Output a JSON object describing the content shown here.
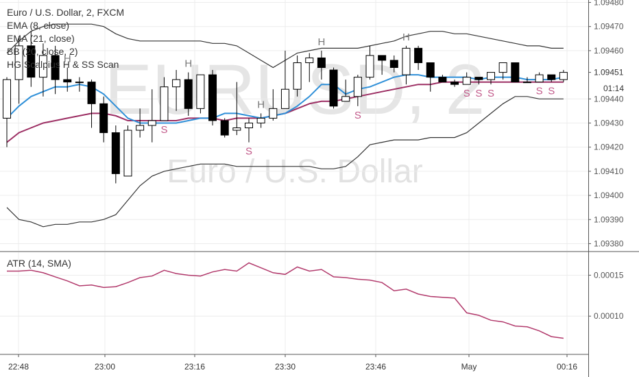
{
  "legend": {
    "title": "Euro / U.S. Dollar, 2, FXCM",
    "lines": [
      "EMA (8, close)",
      "EMA (21, close)",
      "BB (20, close, 2)",
      "HG Scalpius H & SS Scan"
    ]
  },
  "watermark": {
    "symbol": "EURUSD, 2",
    "name": "Euro / U.S. Dollar"
  },
  "atr_legend": "ATR (14, SMA)",
  "last_price_label": "1.09451",
  "countdown_label": "01:14",
  "colors": {
    "up": "#ffffff",
    "down": "#000000",
    "ema8": "#2e8fd8",
    "ema21": "#9c2e63",
    "bb": "#333333",
    "atr": "#b23a6c",
    "marker": "#c25a8a",
    "marker_h": "#777777"
  },
  "chart_data": [
    {
      "type": "candlestick",
      "title": "Euro / U.S. Dollar, 2, FXCM",
      "x_tick_labels": [
        "22:48",
        "23:00",
        "23:16",
        "23:30",
        "23:46",
        "May",
        "00:16"
      ],
      "y_ticks": [
        1.0948,
        1.0947,
        1.0946,
        1.09451,
        1.0944,
        1.0943,
        1.0942,
        1.0941,
        1.094,
        1.0939,
        1.0938
      ],
      "y_tick_labels": [
        "1.09480",
        "1.09470",
        "1.09460",
        "1.09451",
        "1.09440",
        "1.09430",
        "1.09420",
        "1.09410",
        "1.09400",
        "1.09390",
        "1.09380"
      ],
      "ylim": [
        1.09377,
        1.09481
      ],
      "grid": true,
      "candles": [
        [
          1.09432,
          1.09448,
          1.09449,
          1.0942
        ],
        [
          1.09448,
          1.09462,
          1.09466,
          1.09438
        ],
        [
          1.09462,
          1.09449,
          1.09468,
          1.09445
        ],
        [
          1.09449,
          1.09458,
          1.09463,
          1.09441
        ],
        [
          1.09458,
          1.09448,
          1.09462,
          1.09442
        ],
        [
          1.09448,
          1.09447,
          1.09453,
          1.09443
        ],
        [
          1.09447,
          1.09447,
          1.09449,
          1.09443
        ],
        [
          1.09447,
          1.09438,
          1.09448,
          1.09428
        ],
        [
          1.09438,
          1.09426,
          1.09441,
          1.09422
        ],
        [
          1.09426,
          1.09409,
          1.09429,
          1.09405
        ],
        [
          1.09408,
          1.09427,
          1.09429,
          1.09408
        ],
        [
          1.09427,
          1.09429,
          1.09436,
          1.09424
        ],
        [
          1.09429,
          1.09431,
          1.09444,
          1.09422
        ],
        [
          1.09431,
          1.09445,
          1.09449,
          1.09431
        ],
        [
          1.09445,
          1.09448,
          1.09452,
          1.09435
        ],
        [
          1.09448,
          1.09436,
          1.09451,
          1.09433
        ],
        [
          1.09436,
          1.0945,
          1.0945,
          1.09434
        ],
        [
          1.0945,
          1.09431,
          1.09452,
          1.09429
        ],
        [
          1.09431,
          1.09425,
          1.09432,
          1.09424
        ],
        [
          1.09427,
          1.09428,
          1.09447,
          1.09425
        ],
        [
          1.09428,
          1.0943,
          1.09432,
          1.09422
        ],
        [
          1.0943,
          1.09432,
          1.09434,
          1.09428
        ],
        [
          1.09432,
          1.09436,
          1.09444,
          1.09431
        ],
        [
          1.09436,
          1.09444,
          1.0946,
          1.09436
        ],
        [
          1.09444,
          1.09455,
          1.09458,
          1.09441
        ],
        [
          1.09455,
          1.09457,
          1.09459,
          1.09447
        ],
        [
          1.09457,
          1.09453,
          1.0946,
          1.09448
        ],
        [
          1.09452,
          1.09437,
          1.09453,
          1.09436
        ],
        [
          1.09439,
          1.09441,
          1.09448,
          1.09439
        ],
        [
          1.09441,
          1.09449,
          1.0945,
          1.09437
        ],
        [
          1.09449,
          1.09458,
          1.09462,
          1.09448
        ],
        [
          1.09458,
          1.09456,
          1.09458,
          1.0945
        ],
        [
          1.09456,
          1.09453,
          1.09458,
          1.09451
        ],
        [
          1.0945,
          1.09461,
          1.09462,
          1.09446
        ],
        [
          1.09461,
          1.09455,
          1.09462,
          1.09452
        ],
        [
          1.09455,
          1.09449,
          1.0945,
          1.09443
        ],
        [
          1.09449,
          1.09447,
          1.0945,
          1.09447
        ],
        [
          1.09447,
          1.09446,
          1.09448,
          1.09445
        ],
        [
          1.09446,
          1.09449,
          1.09451,
          1.09446
        ],
        [
          1.09449,
          1.09448,
          1.09449,
          1.09446
        ],
        [
          1.09448,
          1.09451,
          1.09451,
          1.09446
        ],
        [
          1.09451,
          1.09455,
          1.09455,
          1.09448
        ],
        [
          1.09455,
          1.09447,
          1.09455,
          1.09447
        ],
        [
          1.09447,
          1.09447,
          1.09449,
          1.09447
        ],
        [
          1.09447,
          1.0945,
          1.09451,
          1.09447
        ],
        [
          1.0945,
          1.09448,
          1.09449,
          1.09447
        ],
        [
          1.09448,
          1.09451,
          1.09452,
          1.09447
        ]
      ],
      "ema8": [
        1.09432,
        1.09437,
        1.09441,
        1.09443,
        1.09445,
        1.09445,
        1.09446,
        1.09445,
        1.09442,
        1.09437,
        1.09432,
        1.0943,
        1.0943,
        1.0943,
        1.0943,
        1.09431,
        1.09432,
        1.09432,
        1.09434,
        1.09434,
        1.09433,
        1.09432,
        1.09433,
        1.09434,
        1.09437,
        1.09441,
        1.09446,
        1.09446,
        1.09442,
        1.09444,
        1.09445,
        1.09447,
        1.09449,
        1.0945,
        1.0945,
        1.09449,
        1.09449,
        1.09449,
        1.09449,
        1.09448,
        1.09449,
        1.09449,
        1.09449,
        1.09448,
        1.09448,
        1.09448,
        1.09449
      ],
      "ema21": [
        1.09422,
        1.09426,
        1.09428,
        1.0943,
        1.09431,
        1.09432,
        1.09433,
        1.09434,
        1.09434,
        1.09433,
        1.09431,
        1.09431,
        1.09431,
        1.09431,
        1.09431,
        1.09432,
        1.09432,
        1.09432,
        1.09431,
        1.09432,
        1.09432,
        1.09432,
        1.09433,
        1.09434,
        1.09436,
        1.09438,
        1.09439,
        1.09439,
        1.0944,
        1.09441,
        1.09442,
        1.09443,
        1.09444,
        1.09445,
        1.09446,
        1.09446,
        1.09447,
        1.09447,
        1.09447,
        1.09447,
        1.09447,
        1.09447,
        1.09447,
        1.09447,
        1.09447,
        1.09447,
        1.09447
      ],
      "bb_upper": [
        1.09459,
        1.09464,
        1.09468,
        1.0947,
        1.09471,
        1.09471,
        1.09471,
        1.09471,
        1.0947,
        1.09467,
        1.09465,
        1.09464,
        1.09464,
        1.09464,
        1.09464,
        1.09464,
        1.09464,
        1.09463,
        1.09463,
        1.09462,
        1.09459,
        1.09456,
        1.09453,
        1.09456,
        1.09459,
        1.0946,
        1.09461,
        1.09461,
        1.09461,
        1.09461,
        1.09462,
        1.09463,
        1.09464,
        1.09466,
        1.09467,
        1.09468,
        1.09468,
        1.09467,
        1.09467,
        1.09466,
        1.09465,
        1.09464,
        1.09463,
        1.09462,
        1.09462,
        1.09461,
        1.09461
      ],
      "bb_lower": [
        1.09395,
        1.0939,
        1.09389,
        1.09387,
        1.09388,
        1.09388,
        1.09389,
        1.09389,
        1.0939,
        1.09392,
        1.09398,
        1.09404,
        1.09408,
        1.0941,
        1.09411,
        1.09412,
        1.09413,
        1.09413,
        1.09413,
        1.09412,
        1.09412,
        1.09412,
        1.09412,
        1.09412,
        1.09412,
        1.09412,
        1.09411,
        1.09411,
        1.09412,
        1.09416,
        1.09421,
        1.09422,
        1.09423,
        1.09423,
        1.09423,
        1.09424,
        1.09424,
        1.09424,
        1.09426,
        1.0943,
        1.09434,
        1.09438,
        1.09441,
        1.09441,
        1.0944,
        1.0944,
        1.0944
      ],
      "markers": [
        {
          "index": 5,
          "text": "H",
          "position": "above"
        },
        {
          "index": 15,
          "text": "H",
          "position": "above"
        },
        {
          "index": 21,
          "text": "H",
          "position": "above"
        },
        {
          "index": 26,
          "text": "H",
          "position": "above"
        },
        {
          "index": 33,
          "text": "H",
          "position": "above"
        },
        {
          "index": 13,
          "text": "S",
          "position": "below"
        },
        {
          "index": 20,
          "text": "S",
          "position": "below"
        },
        {
          "index": 29,
          "text": "S",
          "position": "below"
        },
        {
          "index": 38,
          "text": "S",
          "position": "below"
        },
        {
          "index": 39,
          "text": "S",
          "position": "below"
        },
        {
          "index": 40,
          "text": "S",
          "position": "below"
        },
        {
          "index": 44,
          "text": "S",
          "position": "below"
        },
        {
          "index": 45,
          "text": "S",
          "position": "below"
        }
      ]
    },
    {
      "type": "line",
      "title": "ATR (14, SMA)",
      "y_ticks": [
        0.00015,
        0.0001
      ],
      "y_tick_labels": [
        "0.00015",
        "0.00010"
      ],
      "ylim": [
        5.5e-05,
        0.000178
      ],
      "values": [
        0.000155,
        0.000155,
        0.000156,
        0.000153,
        0.000148,
        0.000143,
        0.000137,
        0.000138,
        0.000135,
        0.000136,
        0.000141,
        0.000147,
        0.000149,
        0.000156,
        0.000152,
        0.00015,
        0.000149,
        0.000154,
        0.000157,
        0.000155,
        0.000165,
        0.000159,
        0.000153,
        0.000151,
        0.00016,
        0.000155,
        0.000157,
        0.000148,
        0.000147,
        0.000145,
        0.000144,
        0.000141,
        0.000131,
        0.000133,
        0.000127,
        0.000124,
        0.000123,
        0.000122,
        0.000104,
        0.000101,
        9.5e-05,
        9.3e-05,
        8.8e-05,
        8.7e-05,
        8.2e-05,
        7.5e-05,
        7.3e-05
      ]
    }
  ]
}
